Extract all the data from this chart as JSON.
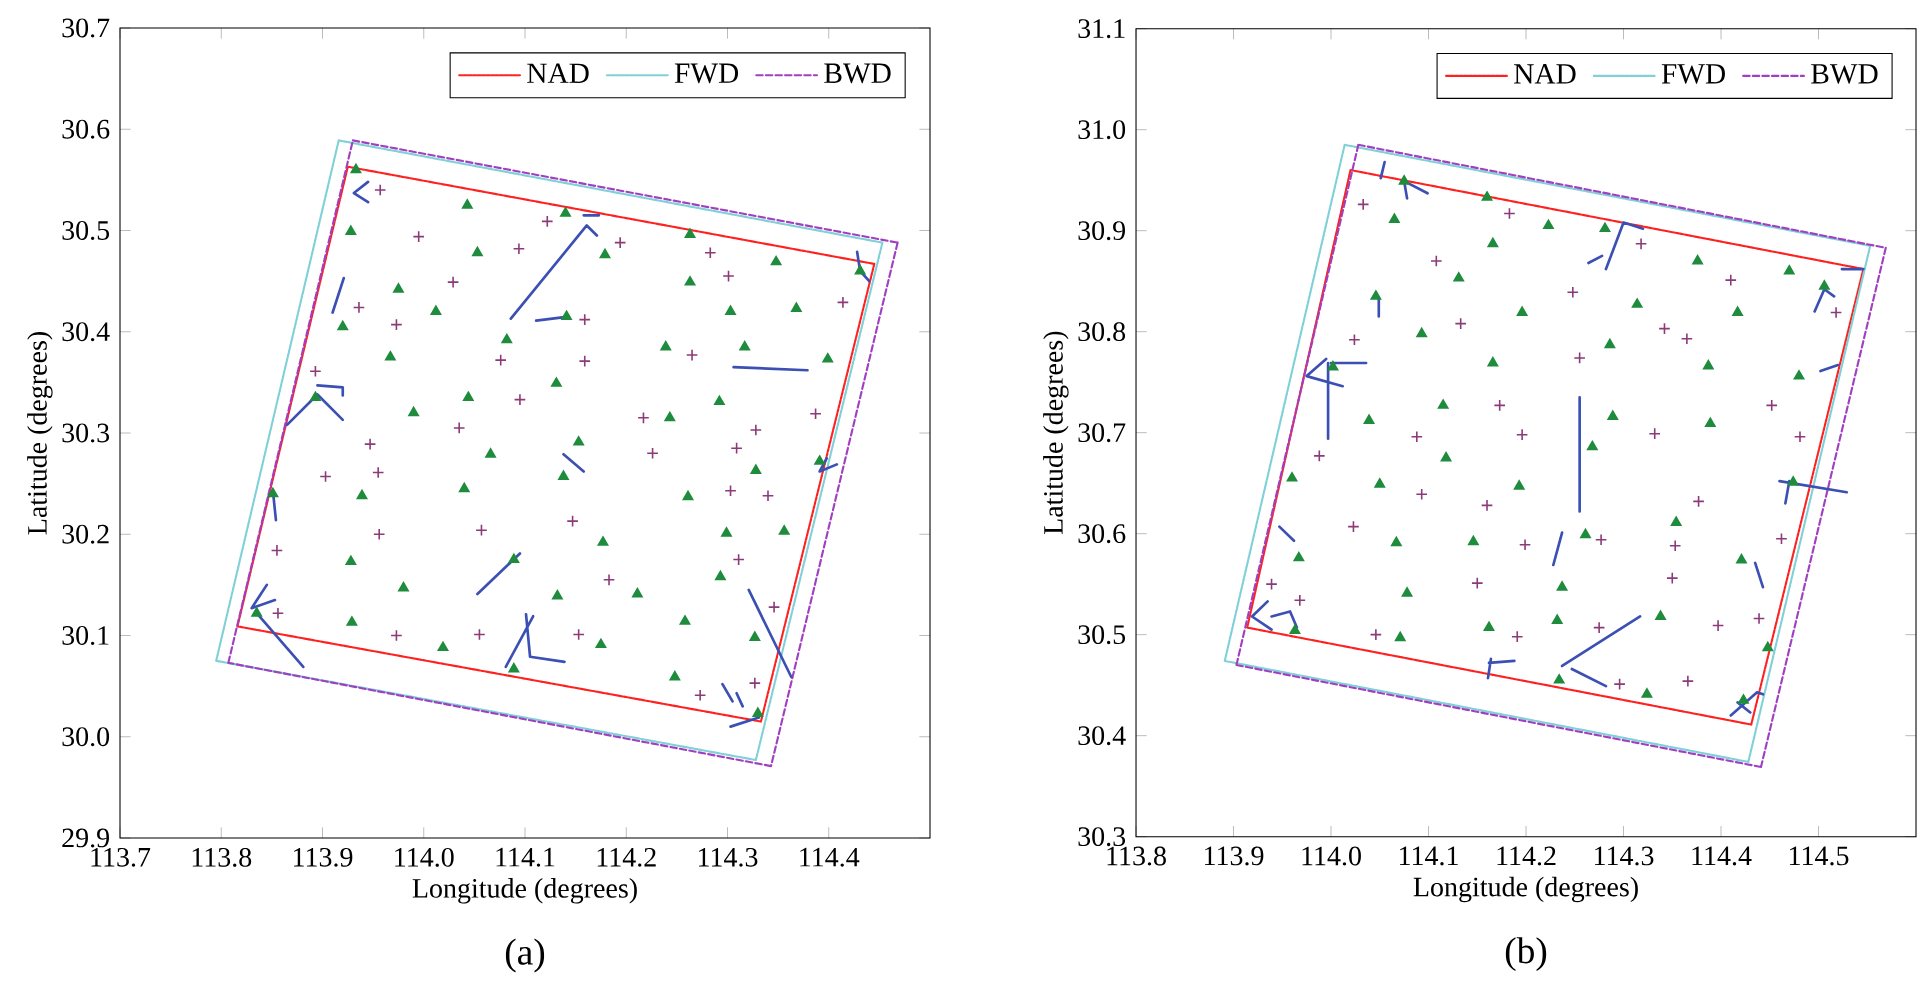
{
  "chart_data": [
    {
      "type": "scatter",
      "xlabel": "Longitude (degrees)",
      "ylabel": "Latitude (degrees)",
      "annotations": [
        "(a)"
      ],
      "legend": "top right",
      "xlim": [
        113.7,
        114.5
      ],
      "xticks": [
        113.7,
        113.8,
        113.9,
        {
          "value": 114.0,
          "label": "114.0"
        },
        114.1,
        114.2,
        114.3,
        114.4
      ],
      "ylim": [
        29.9,
        30.7
      ],
      "yticks": [
        29.9,
        {
          "value": 30.0,
          "label": "30.0"
        },
        30.1,
        30.2,
        30.3,
        30.4,
        30.5,
        30.6,
        30.7
      ],
      "series": [
        {
          "name": "NAD",
          "type": "line",
          "line_style": "dotted",
          "color": "#ff2020",
          "x": [
            113.925,
            114.445,
            null,
            114.445,
            114.333,
            null,
            114.333,
            113.816,
            null,
            113.816,
            113.925
          ],
          "values": [
            30.563,
            30.467,
            null,
            30.467,
            30.015,
            null,
            30.015,
            30.109,
            null,
            30.109,
            30.563
          ]
        },
        {
          "name": "FWD",
          "type": "line",
          "line_style": "dotted",
          "color": "#80d0d8",
          "x": [
            113.916,
            114.453,
            null,
            114.453,
            114.328,
            null,
            114.328,
            113.795,
            null,
            113.795,
            113.916
          ],
          "values": [
            30.589,
            30.488,
            null,
            30.488,
            29.977,
            null,
            29.977,
            30.075,
            null,
            30.075,
            30.589
          ]
        },
        {
          "name": "BWD",
          "type": "line",
          "line_style": "dashed",
          "color": "#a040c0",
          "x": [
            113.93,
            114.468,
            null,
            114.468,
            114.343,
            null,
            114.343,
            113.807,
            null,
            113.807,
            113.93
          ],
          "values": [
            30.589,
            30.488,
            null,
            30.488,
            29.971,
            null,
            29.971,
            30.073,
            null,
            30.073,
            30.589
          ]
        },
        {
          "marker": "triangle",
          "color": "#1e8c3c",
          "x": [
            113.933,
            114.043,
            114.14,
            113.928,
            114.053,
            114.179,
            114.263,
            114.348,
            114.431,
            113.975,
            114.263,
            114.012,
            113.92,
            114.303,
            114.368,
            114.141,
            114.082,
            113.967,
            114.239,
            114.317,
            114.399,
            114.131,
            114.044,
            113.893,
            113.99,
            114.292,
            114.243,
            114.153,
            114.066,
            114.328,
            114.391,
            113.851,
            113.939,
            114.04,
            114.138,
            114.261,
            114.177,
            114.299,
            114.356,
            113.928,
            114.089,
            114.293,
            113.98,
            114.132,
            114.211,
            113.835,
            113.929,
            114.258,
            114.019,
            114.175,
            114.327,
            114.089,
            114.248,
            114.33
          ],
          "values": [
            30.56,
            30.525,
            30.517,
            30.499,
            30.478,
            30.476,
            30.496,
            30.469,
            30.46,
            30.442,
            30.449,
            30.42,
            30.405,
            30.42,
            30.423,
            30.415,
            30.392,
            30.375,
            30.385,
            30.385,
            30.373,
            30.349,
            30.335,
            30.335,
            30.32,
            30.331,
            30.315,
            30.291,
            30.279,
            30.263,
            30.272,
            30.24,
            30.238,
            30.245,
            30.257,
            30.237,
            30.192,
            30.201,
            30.203,
            30.173,
            30.175,
            30.158,
            30.147,
            30.139,
            30.141,
            30.122,
            30.113,
            30.114,
            30.088,
            30.091,
            30.098,
            30.067,
            30.059,
            30.023
          ]
        },
        {
          "marker": "cross",
          "color": "#8c3a78",
          "x": [
            113.957,
            114.122,
            113.995,
            114.194,
            114.094,
            114.283,
            114.029,
            114.301,
            113.936,
            113.973,
            114.159,
            114.414,
            114.076,
            114.159,
            114.265,
            113.893,
            114.095,
            114.035,
            114.217,
            114.328,
            114.387,
            113.947,
            114.226,
            114.309,
            113.903,
            113.955,
            114.303,
            114.34,
            114.057,
            114.147,
            113.956,
            114.311,
            114.183,
            113.855,
            113.856,
            114.346,
            113.973,
            114.055,
            114.153,
            114.327,
            114.273
          ],
          "values": [
            30.54,
            30.509,
            30.494,
            30.488,
            30.482,
            30.478,
            30.449,
            30.455,
            30.424,
            30.407,
            30.412,
            30.429,
            30.372,
            30.371,
            30.377,
            30.361,
            30.333,
            30.305,
            30.315,
            30.303,
            30.319,
            30.289,
            30.28,
            30.285,
            30.257,
            30.261,
            30.243,
            30.238,
            30.204,
            30.213,
            30.2,
            30.175,
            30.155,
            30.184,
            30.122,
            30.128,
            30.1,
            30.101,
            30.101,
            30.053,
            30.041
          ]
        },
        {
          "type": "line",
          "line_style": "solid",
          "color": "#3c50b4",
          "x": [
            113.945,
            113.931,
            113.945,
            null,
            113.921,
            113.91,
            null,
            114.086,
            114.161,
            114.171,
            null,
            114.158,
            114.173,
            null,
            114.111,
            114.143,
            null,
            114.306,
            114.379,
            null,
            114.428,
            114.431,
            114.44,
            null,
            113.865,
            113.895,
            113.92,
            null,
            113.895,
            113.92,
            113.92,
            null,
            114.138,
            114.158,
            null,
            113.851,
            113.854,
            null,
            113.845,
            113.83,
            113.853,
            null,
            113.835,
            113.881,
            null,
            114.053,
            114.095,
            null,
            114.108,
            114.081,
            null,
            114.101,
            114.105,
            114.139,
            null,
            114.321,
            114.363,
            null,
            114.295,
            114.305,
            null,
            114.309,
            114.315,
            null,
            114.303,
            114.331,
            null,
            114.408,
            114.391,
            114.398
          ],
          "values": [
            30.548,
            30.537,
            30.528,
            null,
            30.453,
            30.419,
            null,
            30.413,
            30.505,
            30.495,
            null,
            30.515,
            30.515,
            null,
            30.411,
            30.415,
            null,
            30.365,
            30.362,
            null,
            30.479,
            30.46,
            30.45,
            null,
            30.308,
            30.338,
            30.313,
            null,
            30.347,
            30.345,
            30.337,
            null,
            30.279,
            30.262,
            null,
            30.243,
            30.214,
            null,
            30.15,
            30.127,
            30.135,
            null,
            30.122,
            30.069,
            null,
            30.141,
            30.181,
            null,
            30.119,
            30.069,
            null,
            30.121,
            30.079,
            30.074,
            null,
            30.145,
            30.059,
            null,
            30.052,
            30.035,
            null,
            30.043,
            30.03,
            null,
            30.01,
            30.019,
            null,
            30.269,
            30.262,
            30.275
          ]
        }
      ]
    },
    {
      "type": "scatter",
      "xlabel": "Longitude (degrees)",
      "ylabel": "Latitude (degrees)",
      "annotations": [
        "(b)"
      ],
      "legend": "top right",
      "xlim": [
        113.8,
        114.6
      ],
      "xticks": [
        113.8,
        113.9,
        {
          "value": 114.0,
          "label": "114.0"
        },
        114.1,
        114.2,
        114.3,
        114.4,
        114.5
      ],
      "ylim": [
        30.3,
        31.1
      ],
      "yticks": [
        30.3,
        30.4,
        30.5,
        30.6,
        30.7,
        30.8,
        30.9,
        {
          "value": 31.0,
          "label": "31.0"
        },
        31.1
      ],
      "series": [
        {
          "name": "NAD",
          "type": "line",
          "line_style": "dotted",
          "color": "#ff2020",
          "x": [
            114.02,
            114.546,
            null,
            114.546,
            114.431,
            null,
            114.431,
            113.914,
            null,
            113.914,
            114.02
          ],
          "values": [
            30.96,
            30.862,
            null,
            30.862,
            30.411,
            null,
            30.411,
            30.507,
            null,
            30.507,
            30.96
          ]
        },
        {
          "name": "FWD",
          "type": "line",
          "line_style": "dotted",
          "color": "#80d0d8",
          "x": [
            114.014,
            114.553,
            null,
            114.553,
            114.428,
            null,
            114.428,
            113.891,
            null,
            113.891,
            114.014
          ],
          "values": [
            30.985,
            30.885,
            null,
            30.885,
            30.374,
            null,
            30.374,
            30.474,
            null,
            30.474,
            30.985
          ]
        },
        {
          "name": "BWD",
          "type": "line",
          "line_style": "dashed",
          "color": "#a040c0",
          "x": [
            114.028,
            114.569,
            null,
            114.569,
            114.441,
            null,
            114.441,
            113.903,
            null,
            113.903,
            114.028
          ],
          "values": [
            30.985,
            30.883,
            null,
            30.883,
            30.369,
            null,
            30.369,
            30.47,
            null,
            30.47,
            30.985
          ]
        },
        {
          "marker": "triangle",
          "color": "#1e8c3c",
          "x": [
            114.075,
            114.16,
            114.065,
            114.223,
            114.281,
            114.166,
            114.131,
            114.376,
            114.47,
            114.046,
            114.196,
            114.314,
            114.417,
            114.506,
            114.093,
            114.286,
            114.166,
            114.387,
            114.48,
            114.002,
            114.115,
            114.039,
            114.289,
            114.389,
            114.268,
            114.118,
            113.96,
            114.05,
            114.193,
            114.474,
            114.354,
            114.067,
            114.146,
            114.261,
            113.967,
            114.421,
            114.078,
            114.237,
            114.338,
            114.232,
            114.162,
            113.963,
            114.071,
            114.234,
            114.324,
            114.423,
            114.448
          ],
          "values": [
            30.949,
            30.933,
            30.911,
            30.905,
            30.902,
            30.887,
            30.853,
            30.87,
            30.86,
            30.835,
            30.819,
            30.827,
            30.819,
            30.845,
            30.798,
            30.787,
            30.769,
            30.766,
            30.756,
            30.765,
            30.727,
            30.712,
            30.716,
            30.709,
            30.686,
            30.675,
            30.655,
            30.649,
            30.647,
            30.651,
            30.611,
            30.591,
            30.592,
            30.599,
            30.576,
            30.574,
            30.541,
            30.547,
            30.518,
            30.514,
            30.507,
            30.504,
            30.497,
            30.455,
            30.441,
            30.435,
            30.487
          ]
        },
        {
          "marker": "cross",
          "color": "#8c3a78",
          "x": [
            114.033,
            114.183,
            114.108,
            114.318,
            114.248,
            114.41,
            114.133,
            114.342,
            114.365,
            114.518,
            114.024,
            114.255,
            114.173,
            114.452,
            114.088,
            114.196,
            114.332,
            114.481,
            113.988,
            114.093,
            114.16,
            114.377,
            114.023,
            114.199,
            114.277,
            114.353,
            114.462,
            113.939,
            114.15,
            114.35,
            113.968,
            114.397,
            114.439,
            114.046,
            114.191,
            114.275,
            114.296,
            114.366
          ],
          "values": [
            30.926,
            30.917,
            30.87,
            30.887,
            30.839,
            30.851,
            30.808,
            30.803,
            30.793,
            30.819,
            30.792,
            30.774,
            30.727,
            30.727,
            30.696,
            30.698,
            30.699,
            30.696,
            30.677,
            30.639,
            30.628,
            30.632,
            30.607,
            30.589,
            30.594,
            30.588,
            30.595,
            30.55,
            30.551,
            30.556,
            30.534,
            30.509,
            30.516,
            30.5,
            30.498,
            30.507,
            30.451,
            30.454
          ]
        },
        {
          "type": "line",
          "line_style": "solid",
          "color": "#3c50b4",
          "x": [
            114.055,
            114.051,
            null,
            114.078,
            114.075,
            114.099,
            null,
            114.282,
            114.3,
            114.32,
            null,
            114.264,
            114.278,
            null,
            114.049,
            114.049,
            null,
            113.997,
            113.997,
            null,
            114.0,
            114.036,
            null,
            113.995,
            113.975,
            114.012,
            null,
            114.255,
            114.255,
            null,
            114.496,
            114.506,
            114.516,
            null,
            114.524,
            114.546,
            null,
            114.502,
            114.52,
            null,
            113.947,
            113.962,
            null,
            114.237,
            114.228,
            null,
            113.935,
            113.919,
            113.939,
            null,
            113.939,
            113.958,
            113.965,
            null,
            114.164,
            114.161,
            null,
            114.162,
            114.188,
            null,
            114.317,
            114.237,
            null,
            114.247,
            114.282,
            null,
            114.435,
            114.443,
            null,
            114.46,
            114.529,
            null,
            114.466,
            114.47,
            null,
            114.41,
            114.437,
            114.443,
            null,
            114.417,
            114.43
          ],
          "values": [
            30.968,
            30.952,
            null,
            30.932,
            30.949,
            30.937,
            null,
            30.862,
            30.908,
            30.902,
            null,
            30.868,
            30.875,
            null,
            30.833,
            30.815,
            null,
            30.769,
            30.694,
            null,
            30.769,
            30.769,
            null,
            30.773,
            30.756,
            30.746,
            null,
            30.735,
            30.622,
            null,
            30.82,
            30.842,
            30.835,
            null,
            30.862,
            30.862,
            null,
            30.761,
            30.767,
            null,
            30.607,
            30.593,
            null,
            30.601,
            30.569,
            null,
            30.533,
            30.518,
            30.505,
            null,
            30.518,
            30.523,
            30.507,
            null,
            30.476,
            30.457,
            null,
            30.472,
            30.474,
            null,
            30.518,
            30.469,
            null,
            30.466,
            30.449,
            null,
            30.571,
            30.547,
            null,
            30.652,
            30.641,
            null,
            30.63,
            30.652,
            null,
            30.42,
            30.443,
            30.441,
            null,
            30.433,
            30.423
          ]
        }
      ]
    }
  ]
}
